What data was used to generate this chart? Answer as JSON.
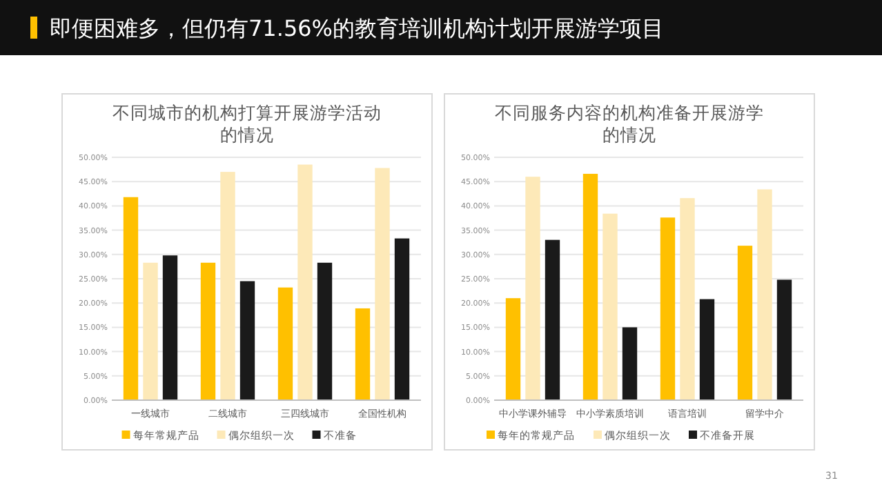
{
  "chart_data": [
    {
      "type": "bar",
      "title": "不同城市的机构打算开展游学活动的情况",
      "annotations": [
        "即便困难多，但仍有71.56%的教育培训机构计划开展游学项目"
      ],
      "categories": [
        "一线城市",
        "二线城市",
        "三四线城市",
        "全国性机构"
      ],
      "series": [
        {
          "name": "每年常规产品",
          "color": "#ffc000",
          "values": [
            41.8,
            28.3,
            23.2,
            18.9
          ]
        },
        {
          "name": "偶尔组织一次",
          "color": "#fde9b8",
          "values": [
            28.3,
            47.0,
            48.5,
            47.8
          ]
        },
        {
          "name": "不准备",
          "color": "#1a1a1a",
          "values": [
            29.8,
            24.5,
            28.3,
            33.3
          ]
        }
      ],
      "ylim": [
        0,
        50
      ],
      "yticks": [
        {
          "value": 0,
          "label": "0.00%"
        },
        {
          "value": 5,
          "label": "5.00%"
        },
        {
          "value": 10,
          "label": "10.00%"
        },
        {
          "value": 15,
          "label": "15.00%"
        },
        {
          "value": 20,
          "label": "20.00%"
        },
        {
          "value": 25,
          "label": "25.00%"
        },
        {
          "value": 30,
          "label": "30.00%"
        },
        {
          "value": 35,
          "label": "35.00%"
        },
        {
          "value": 40,
          "label": "40.00%"
        },
        {
          "value": 45,
          "label": "45.00%"
        },
        {
          "value": 50,
          "label": "50.00%"
        }
      ],
      "grid": "y",
      "legend": "bottom"
    },
    {
      "type": "bar",
      "title": "不同服务内容的机构准备开展游学的情况",
      "annotations": [
        "31"
      ],
      "categories": [
        "中小学课外辅导",
        "中小学素质培训",
        "语言培训",
        "留学中介"
      ],
      "series": [
        {
          "name": "每年的常规产品",
          "color": "#ffc000",
          "values": [
            21.0,
            46.6,
            37.6,
            31.8
          ]
        },
        {
          "name": "偶尔组织一次",
          "color": "#fde9b8",
          "values": [
            46.0,
            38.4,
            41.6,
            43.4
          ]
        },
        {
          "name": "不准备开展",
          "color": "#1a1a1a",
          "values": [
            33.0,
            15.0,
            20.8,
            24.8
          ]
        }
      ],
      "ylim": [
        0,
        50
      ],
      "yticks": [
        {
          "value": 0,
          "label": "0.00%"
        },
        {
          "value": 5,
          "label": "5.00%"
        },
        {
          "value": 10,
          "label": "10.00%"
        },
        {
          "value": 15,
          "label": "15.00%"
        },
        {
          "value": 20,
          "label": "20.00%"
        },
        {
          "value": 25,
          "label": "25.00%"
        },
        {
          "value": 30,
          "label": "30.00%"
        },
        {
          "value": 35,
          "label": "35.00%"
        },
        {
          "value": 40,
          "label": "40.00%"
        },
        {
          "value": 45,
          "label": "45.00%"
        },
        {
          "value": 50,
          "label": "50.00%"
        }
      ],
      "grid": "y",
      "legend": "bottom"
    }
  ]
}
